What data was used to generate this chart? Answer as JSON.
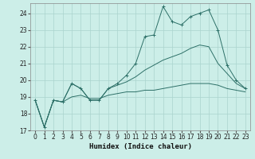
{
  "xlabel": "Humidex (Indice chaleur)",
  "bg_color": "#cceee8",
  "grid_color": "#aad4ce",
  "line_color": "#2d7068",
  "xlim": [
    -0.5,
    23.5
  ],
  "ylim": [
    17.0,
    24.6
  ],
  "xticks": [
    0,
    1,
    2,
    3,
    4,
    5,
    6,
    7,
    8,
    9,
    10,
    11,
    12,
    13,
    14,
    15,
    16,
    17,
    18,
    19,
    20,
    21,
    22,
    23
  ],
  "yticks": [
    17,
    18,
    19,
    20,
    21,
    22,
    23,
    24
  ],
  "line1_x": [
    0,
    1,
    2,
    3,
    4,
    5,
    6,
    7,
    8,
    9,
    10,
    11,
    12,
    13,
    14,
    15,
    16,
    17,
    18,
    19,
    20,
    21,
    22,
    23
  ],
  "line1_y": [
    18.8,
    17.2,
    18.8,
    18.7,
    19.8,
    19.5,
    18.8,
    18.8,
    19.5,
    19.8,
    20.3,
    21.0,
    22.6,
    22.7,
    24.4,
    23.5,
    23.3,
    23.8,
    24.0,
    24.2,
    23.0,
    20.9,
    20.0,
    19.5
  ],
  "line2_x": [
    0,
    1,
    2,
    3,
    4,
    5,
    6,
    7,
    8,
    9,
    10,
    11,
    12,
    13,
    14,
    15,
    16,
    17,
    18,
    19,
    20,
    21,
    22,
    23
  ],
  "line2_y": [
    18.8,
    17.2,
    18.8,
    18.7,
    19.8,
    19.5,
    18.8,
    18.8,
    19.5,
    19.7,
    19.9,
    20.2,
    20.6,
    20.9,
    21.2,
    21.4,
    21.6,
    21.9,
    22.1,
    22.0,
    21.0,
    20.4,
    19.8,
    19.5
  ],
  "line3_x": [
    0,
    1,
    2,
    3,
    4,
    5,
    6,
    7,
    8,
    9,
    10,
    11,
    12,
    13,
    14,
    15,
    16,
    17,
    18,
    19,
    20,
    21,
    22,
    23
  ],
  "line3_y": [
    18.8,
    17.2,
    18.8,
    18.7,
    19.0,
    19.1,
    18.9,
    18.9,
    19.1,
    19.2,
    19.3,
    19.3,
    19.4,
    19.4,
    19.5,
    19.6,
    19.7,
    19.8,
    19.8,
    19.8,
    19.7,
    19.5,
    19.4,
    19.3
  ]
}
